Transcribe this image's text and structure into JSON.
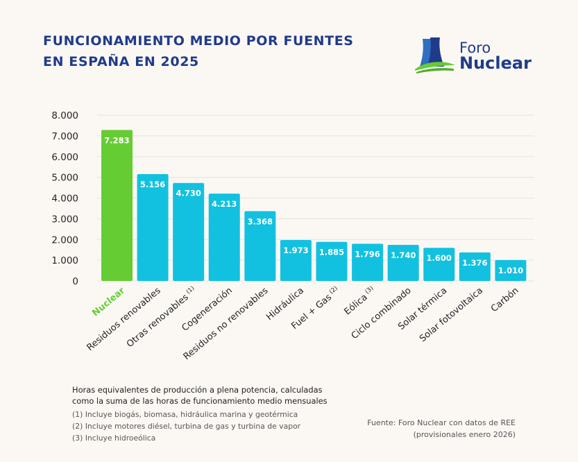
{
  "header": {
    "title_line1": "FUNCIONAMIENTO MEDIO POR FUENTES",
    "title_line2": "EN ESPAÑA EN 2025"
  },
  "logo": {
    "line1": "Foro",
    "line2": "Nuclear"
  },
  "colors": {
    "nuclear": "#66cc33",
    "others": "#12c1e0",
    "title": "#1f3b8a"
  },
  "chart_data": {
    "type": "bar",
    "title": "FUNCIONAMIENTO MEDIO POR FUENTES EN ESPAÑA EN 2025",
    "categories": [
      "Nuclear",
      "Residuos renovables",
      "Otras renovables",
      "Cogeneración",
      "Residuos no renovables",
      "Hidráulica",
      "Fuel + Gas",
      "Eólica",
      "Ciclo combinado",
      "Solar térmica",
      "Solar fotovoltaica",
      "Carbón"
    ],
    "category_superscripts": [
      "",
      "",
      "(1)",
      "",
      "",
      "",
      "(2)",
      "(3)",
      "",
      "",
      "",
      ""
    ],
    "values": [
      7283,
      5156,
      4730,
      4213,
      3368,
      1973,
      1885,
      1796,
      1740,
      1600,
      1376,
      1010
    ],
    "value_labels": [
      "7.283",
      "5.156",
      "4.730",
      "4.213",
      "3.368",
      "1.973",
      "1.885",
      "1.796",
      "1.740",
      "1.600",
      "1.376",
      "1.010"
    ],
    "yticks": [
      "0",
      "1.000",
      "2.000",
      "3.000",
      "4.000",
      "5.000",
      "6.000",
      "7.000",
      "8.000"
    ],
    "ylim": [
      0,
      8000
    ],
    "xlabel": "",
    "ylabel": "",
    "grid": true
  },
  "notes": {
    "main_line1": "Horas equivalentes de producción a plena potencia, calculadas",
    "main_line2": "como la suma de las horas de funcionamiento medio mensuales",
    "fn1": "(1)  Incluye biogás, biomasa, hidráulica marina y geotérmica",
    "fn2": "(2) Incluye motores diésel, turbina de gas y turbina de vapor",
    "fn3": "(3) Incluye hidroeólica"
  },
  "source": {
    "line1": "Fuente: Foro Nuclear con datos de REE",
    "line2": "(provisionales enero 2026)"
  }
}
